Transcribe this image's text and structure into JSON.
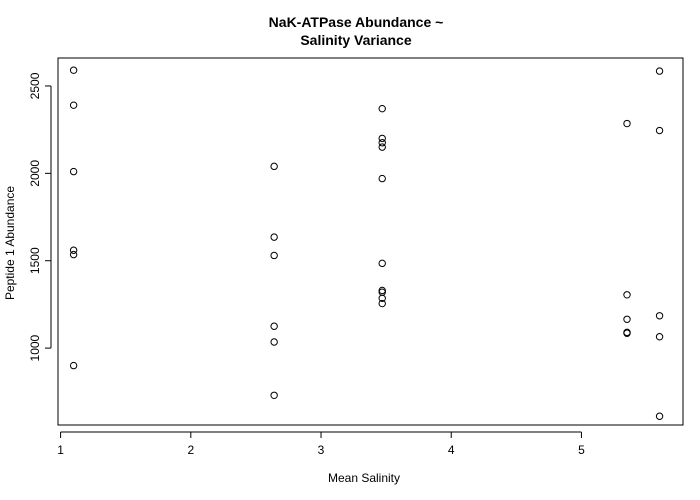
{
  "chart_data": {
    "type": "scatter",
    "title_lines": [
      "NaK-ATPase Abundance ~",
      "Salinity Variance"
    ],
    "xlabel": "Mean Salinity",
    "ylabel": "Peptide 1 Abundance",
    "xlim": [
      0.98,
      5.78
    ],
    "ylim": [
      560,
      2660
    ],
    "xticks": [
      1,
      2,
      3,
      4,
      5
    ],
    "yticks": [
      1000,
      1500,
      2000,
      2500
    ],
    "grid": false,
    "series": [
      {
        "name": "Peptide 1",
        "points": [
          {
            "x": 1.1,
            "y": 2590
          },
          {
            "x": 1.1,
            "y": 2390
          },
          {
            "x": 1.1,
            "y": 2010
          },
          {
            "x": 1.1,
            "y": 1560
          },
          {
            "x": 1.1,
            "y": 1535
          },
          {
            "x": 1.1,
            "y": 900
          },
          {
            "x": 2.64,
            "y": 2040
          },
          {
            "x": 2.64,
            "y": 1635
          },
          {
            "x": 2.64,
            "y": 1530
          },
          {
            "x": 2.64,
            "y": 1125
          },
          {
            "x": 2.64,
            "y": 1035
          },
          {
            "x": 2.64,
            "y": 730
          },
          {
            "x": 3.47,
            "y": 2370
          },
          {
            "x": 3.47,
            "y": 2200
          },
          {
            "x": 3.47,
            "y": 2175
          },
          {
            "x": 3.47,
            "y": 2150
          },
          {
            "x": 3.47,
            "y": 1970
          },
          {
            "x": 3.47,
            "y": 1485
          },
          {
            "x": 3.47,
            "y": 1330
          },
          {
            "x": 3.47,
            "y": 1320
          },
          {
            "x": 3.47,
            "y": 1285
          },
          {
            "x": 3.47,
            "y": 1255
          },
          {
            "x": 5.35,
            "y": 2285
          },
          {
            "x": 5.35,
            "y": 1305
          },
          {
            "x": 5.35,
            "y": 1165
          },
          {
            "x": 5.35,
            "y": 1090
          },
          {
            "x": 5.35,
            "y": 1085
          },
          {
            "x": 5.6,
            "y": 2585
          },
          {
            "x": 5.6,
            "y": 2245
          },
          {
            "x": 5.6,
            "y": 1185
          },
          {
            "x": 5.6,
            "y": 1065
          },
          {
            "x": 5.6,
            "y": 610
          }
        ]
      }
    ]
  }
}
